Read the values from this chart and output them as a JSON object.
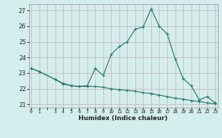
{
  "line1_x": [
    0,
    1,
    3,
    4,
    5,
    6,
    7,
    8,
    9,
    10,
    11,
    12,
    13,
    14,
    15,
    16,
    17,
    18,
    19,
    20,
    21,
    22,
    23
  ],
  "line1_y": [
    23.3,
    23.1,
    22.6,
    22.3,
    22.2,
    22.15,
    22.2,
    23.3,
    22.85,
    24.2,
    24.7,
    25.0,
    25.8,
    25.95,
    27.1,
    26.0,
    25.5,
    23.9,
    22.65,
    22.2,
    21.3,
    21.5,
    21.1
  ],
  "line2_x": [
    0,
    1,
    3,
    4,
    5,
    6,
    7,
    8,
    9,
    10,
    11,
    12,
    13,
    14,
    15,
    16,
    17,
    18,
    19,
    20,
    21,
    22,
    23
  ],
  "line2_y": [
    23.3,
    23.1,
    22.6,
    22.35,
    22.2,
    22.15,
    22.15,
    22.15,
    22.1,
    22.0,
    21.95,
    21.9,
    21.85,
    21.75,
    21.7,
    21.6,
    21.5,
    21.4,
    21.35,
    21.25,
    21.2,
    21.1,
    21.05
  ],
  "line_color": "#2a7a6a",
  "bg_color": "#d4eded",
  "grid_color": "#c8b8b8",
  "xlabel": "Humidex (Indice chaleur)",
  "ylim": [
    20.8,
    27.4
  ],
  "yticks": [
    21,
    22,
    23,
    24,
    25,
    26,
    27
  ],
  "xlim": [
    -0.3,
    23.3
  ],
  "xtick_labels": [
    "0",
    "1",
    "",
    "3",
    "4",
    "5",
    "6",
    "7",
    "8",
    "9",
    "10",
    "11",
    "12",
    "13",
    "14",
    "15",
    "16",
    "17",
    "18",
    "19",
    "20",
    "21",
    "22",
    "23"
  ]
}
